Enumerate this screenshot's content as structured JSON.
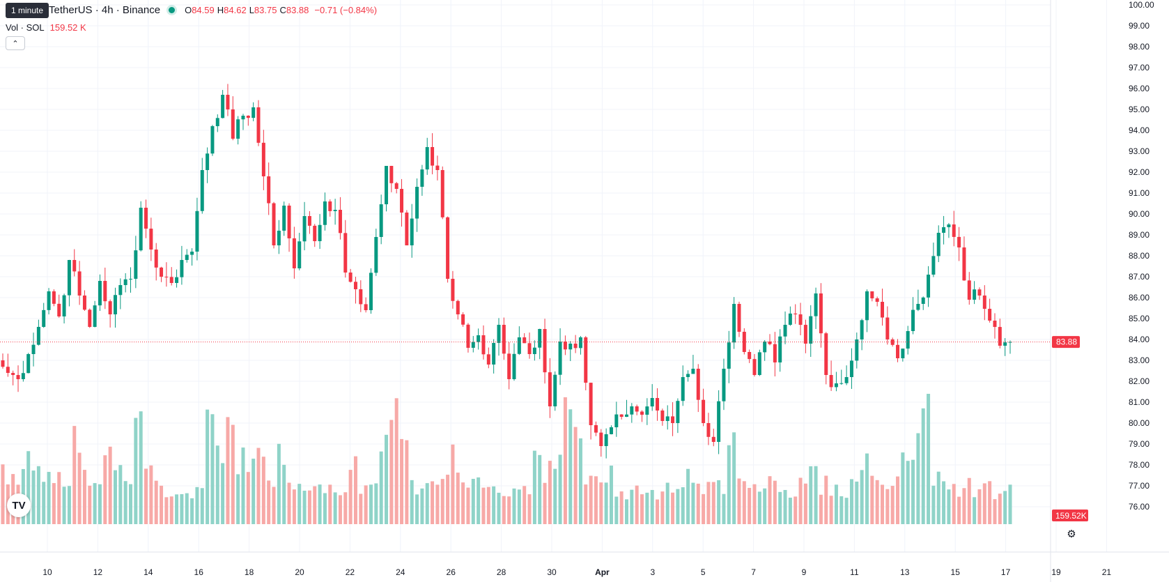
{
  "tooltip": "1 minute",
  "legend": {
    "symbol": "TetherUS · 4h · Binance",
    "o_key": "O",
    "o_val": "84.59",
    "h_key": "H",
    "h_val": "84.62",
    "l_key": "L",
    "l_val": "83.75",
    "c_key": "C",
    "c_val": "83.88",
    "change": "−0.71 (−0.84%)",
    "vol_label": "Vol · SOL",
    "vol_value": "159.52 K"
  },
  "colors": {
    "up": "#089981",
    "down": "#f23645",
    "up_vol": "#8fd3c8",
    "down_vol": "#f7a9a7",
    "grid": "#f0f3fa"
  },
  "icons": {
    "collapse": "chevron-up-icon",
    "logo": "tradingview-logo",
    "settings": "gear-icon"
  },
  "chart_data": {
    "type": "candlestick",
    "ylim": [
      75.5,
      100
    ],
    "y_ticks": [
      "76.00",
      "77.00",
      "78.00",
      "79.00",
      "80.00",
      "81.00",
      "82.00",
      "83.00",
      "84.00",
      "85.00",
      "86.00",
      "87.00",
      "88.00",
      "89.00",
      "90.00",
      "91.00",
      "92.00",
      "93.00",
      "94.00",
      "95.00",
      "96.00",
      "97.00",
      "98.00",
      "99.00",
      "100.00"
    ],
    "x_ticks": [
      "10",
      "12",
      "14",
      "16",
      "18",
      "20",
      "22",
      "24",
      "26",
      "28",
      "30",
      "Apr",
      "3",
      "5",
      "7",
      "9",
      "11",
      "13",
      "15",
      "17",
      "19",
      "21"
    ],
    "last_price_label": "83.88",
    "last_price": 83.88,
    "volume_label": "159.52K",
    "close_path": [
      83,
      82.4,
      82.1,
      83.3,
      84.6,
      86.3,
      85.1,
      87.8,
      86.1,
      84.6,
      86.8,
      85.2,
      86.6,
      86.9,
      90.3,
      88.3,
      87,
      86.7,
      87.8,
      88.2,
      92.1,
      94.2,
      95.7,
      93.6,
      94.7,
      95.1,
      91.8,
      88.5,
      90.4,
      87.4,
      89.9,
      88.7,
      90.6,
      90.2,
      87.2,
      86.4,
      85.4,
      88.9,
      92.3,
      91.2,
      88.5,
      91.3,
      93.2,
      92.1,
      86.9,
      85.2,
      83.6,
      84.2,
      82.8,
      84.7,
      82.1,
      84.1,
      83.3,
      84.5,
      80.8,
      83.9,
      83.8,
      84.1,
      79.9,
      78.9,
      79.8,
      80.3,
      80.8,
      80.4,
      81.2,
      80.1,
      80,
      82.2,
      82.6,
      80,
      79.1,
      82.6,
      85.7,
      83.4,
      82.3,
      83.9,
      82.9,
      84.7,
      85.2,
      83.8,
      86.2,
      82.3,
      81.9,
      82.2,
      84,
      86.3,
      85.8,
      84,
      83.1,
      84.4,
      85.7,
      87.1,
      89.1,
      89.5,
      88.4,
      85.9,
      86.1,
      84.9,
      83.7,
      83.88
    ],
    "volume": {
      "ylim_note": "relative",
      "values": [
        0.4,
        0.35,
        0.55,
        0.5,
        0.35,
        0.42,
        0.3,
        0.62,
        0.35,
        0.3,
        0.55,
        0.38,
        0.3,
        0.7,
        0.45,
        0.3,
        0.25,
        0.3,
        0.22,
        0.3,
        0.85,
        0.6,
        0.8,
        0.5,
        0.45,
        0.55,
        0.35,
        0.5,
        0.3,
        0.28,
        0.25,
        0.3,
        0.25,
        0.28,
        0.45,
        0.3,
        0.3,
        0.7,
        1.0,
        0.55,
        0.3,
        0.35,
        0.4,
        0.38,
        0.5,
        0.35,
        0.3,
        0.25,
        0.3,
        0.25,
        0.28,
        0.3,
        0.55,
        0.4,
        0.45,
        0.85,
        0.7,
        0.35,
        0.3,
        0.4,
        0.28,
        0.25,
        0.3,
        0.22,
        0.25,
        0.28,
        0.3,
        0.35,
        0.25,
        0.28,
        0.3,
        0.75,
        0.4,
        0.28,
        0.3,
        0.35,
        0.3,
        0.25,
        0.3,
        0.4,
        0.3,
        0.28,
        0.25,
        0.3,
        0.5,
        0.35,
        0.3,
        0.35,
        0.45,
        0.6,
        1.1,
        0.35,
        0.3,
        0.25,
        0.3,
        0.25,
        0.28,
        0.2,
        0.25,
        0.14
      ]
    }
  }
}
